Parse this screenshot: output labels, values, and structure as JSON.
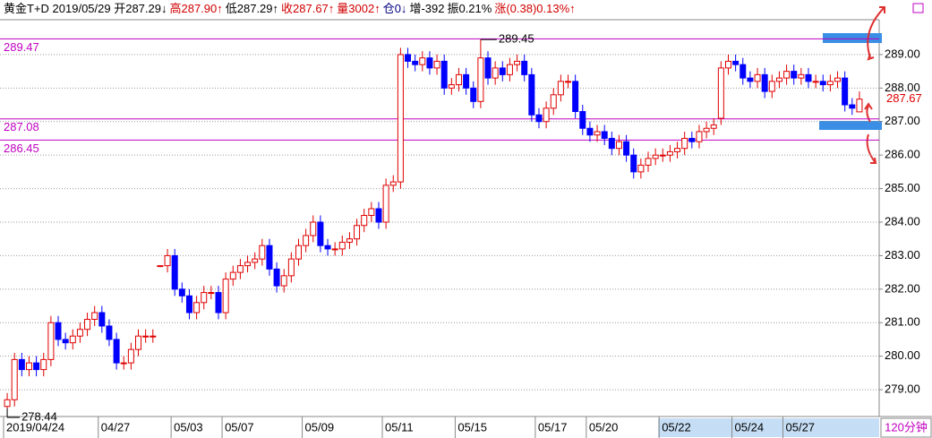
{
  "chart_data": {
    "type": "candlestick",
    "header": [
      {
        "text": "黄金T+D 2019/05/29 开287.29↓",
        "color": "#000000"
      },
      {
        "text": "高287.90↑",
        "color": "#d00000"
      },
      {
        "text": "低287.29↑",
        "color": "#000000"
      },
      {
        "text": "收287.67↑",
        "color": "#d00000"
      },
      {
        "text": "量3002↑",
        "color": "#d00000"
      },
      {
        "text": "仓0↓",
        "color": "#000080"
      },
      {
        "text": "增-392",
        "color": "#000000"
      },
      {
        "text": "振0.21%",
        "color": "#000000"
      },
      {
        "text": "涨(0.38)0.13%↑",
        "color": "#d00000"
      }
    ],
    "period": "120分钟",
    "up_color": "#e00000",
    "down_color": "#0000ff",
    "line_color": "#c000c0",
    "hlines": [
      289.47,
      287.08,
      286.45
    ],
    "ylim": [
      278.2,
      290.04
    ],
    "yticks": [
      {
        "value": 279,
        "label": "279.00"
      },
      {
        "value": 280,
        "label": "280.00"
      },
      {
        "value": 281,
        "label": "281.00"
      },
      {
        "value": 282,
        "label": "282.00"
      },
      {
        "value": 283,
        "label": "283.00"
      },
      {
        "value": 284,
        "label": "284.00"
      },
      {
        "value": 285,
        "label": "285.00"
      },
      {
        "value": 286,
        "label": "286.00"
      },
      {
        "value": 287,
        "label": "287.00"
      },
      {
        "value": 288,
        "label": "288.00"
      },
      {
        "value": 289,
        "label": "289.00"
      }
    ],
    "grid": true,
    "categories": [
      "2019/04/24",
      null,
      null,
      null,
      null,
      null,
      null,
      null,
      null,
      null,
      null,
      null,
      null,
      "04/27",
      null,
      null,
      null,
      null,
      null,
      null,
      null,
      null,
      null,
      "05/03",
      null,
      null,
      null,
      null,
      null,
      null,
      "05/07",
      null,
      null,
      null,
      null,
      null,
      null,
      null,
      null,
      null,
      null,
      "05/09",
      null,
      null,
      null,
      null,
      null,
      null,
      null,
      null,
      null,
      null,
      "05/11",
      null,
      null,
      null,
      null,
      null,
      null,
      null,
      null,
      null,
      "05/15",
      null,
      null,
      null,
      null,
      null,
      null,
      null,
      null,
      null,
      null,
      "05/17",
      null,
      null,
      null,
      null,
      null,
      null,
      "05/20",
      null,
      null,
      null,
      null,
      null,
      null,
      null,
      null,
      null,
      "05/22",
      null,
      null,
      null,
      null,
      null,
      null,
      null,
      null,
      null,
      "05/24",
      null,
      null,
      null,
      null,
      null,
      null,
      "05/27",
      null,
      null,
      null,
      null,
      null,
      null,
      null,
      null,
      null,
      null
    ],
    "open": [
      278.5,
      278.7,
      279.9,
      279.6,
      279.8,
      279.6,
      279.9,
      281.0,
      280.5,
      280.4,
      280.6,
      280.8,
      281.1,
      281.3,
      280.9,
      280.5,
      279.8,
      279.8,
      280.2,
      280.6,
      280.6,
      282.7,
      282.7,
      283.0,
      282.0,
      281.8,
      281.3,
      281.6,
      281.9,
      281.9,
      281.3,
      282.3,
      282.5,
      282.7,
      282.8,
      282.9,
      283.3,
      282.6,
      282.1,
      282.4,
      282.9,
      283.3,
      283.6,
      284.0,
      283.3,
      283.2,
      283.2,
      283.4,
      283.5,
      283.9,
      284.2,
      284.4,
      284.0,
      285.1,
      285.2,
      289.0,
      288.8,
      288.7,
      288.9,
      288.6,
      288.8,
      288.0,
      288.1,
      288.4,
      288.0,
      287.6,
      288.9,
      288.3,
      288.6,
      288.4,
      288.7,
      288.8,
      288.4,
      287.2,
      287.0,
      287.4,
      287.8,
      288.2,
      288.2,
      287.3,
      286.8,
      286.6,
      286.7,
      286.5,
      286.2,
      286.4,
      286.0,
      285.5,
      285.7,
      285.9,
      286.0,
      286.0,
      286.1,
      286.2,
      286.5,
      286.4,
      286.7,
      286.8,
      287.1,
      288.6,
      288.8,
      288.7,
      288.3,
      288.2,
      288.4,
      287.9,
      288.2,
      288.3,
      288.5,
      288.3,
      288.4,
      288.2,
      288.2,
      288.1,
      288.2,
      288.3,
      287.5,
      287.29
    ],
    "high": [
      278.9,
      280.1,
      280.1,
      280.0,
      280.0,
      280.1,
      281.2,
      281.2,
      280.7,
      280.8,
      281.0,
      281.3,
      281.5,
      281.5,
      281.1,
      280.7,
      280.0,
      280.4,
      280.8,
      280.8,
      280.8,
      282.7,
      283.2,
      283.2,
      282.2,
      282.0,
      281.8,
      282.1,
      282.1,
      282.1,
      282.5,
      282.7,
      282.9,
      283.0,
      283.1,
      283.5,
      283.5,
      282.8,
      282.6,
      283.1,
      283.5,
      283.8,
      284.2,
      284.2,
      283.5,
      283.4,
      283.6,
      283.7,
      284.1,
      284.4,
      284.6,
      284.6,
      285.3,
      285.4,
      289.2,
      289.2,
      289.0,
      289.1,
      289.1,
      289.0,
      289.0,
      288.3,
      288.6,
      288.6,
      288.2,
      289.45,
      289.1,
      288.8,
      288.8,
      288.9,
      289.0,
      289.0,
      288.6,
      287.4,
      287.6,
      288.0,
      288.4,
      288.4,
      288.4,
      287.5,
      287.0,
      286.9,
      286.9,
      286.7,
      286.6,
      286.6,
      286.2,
      285.9,
      286.1,
      286.2,
      286.2,
      286.3,
      286.4,
      286.7,
      286.7,
      286.9,
      287.0,
      287.1,
      288.8,
      289.0,
      289.0,
      288.9,
      288.5,
      288.6,
      288.6,
      288.4,
      288.5,
      288.7,
      288.7,
      288.6,
      288.6,
      288.4,
      288.4,
      288.4,
      288.5,
      288.5,
      287.7,
      287.9
    ],
    "low": [
      278.44,
      278.5,
      279.4,
      279.4,
      279.4,
      279.4,
      279.7,
      280.3,
      280.2,
      280.2,
      280.4,
      280.6,
      280.9,
      280.7,
      280.3,
      279.6,
      279.6,
      279.6,
      280.0,
      280.4,
      280.4,
      282.7,
      282.5,
      281.8,
      281.6,
      281.1,
      281.1,
      281.4,
      281.7,
      281.1,
      281.1,
      282.1,
      282.3,
      282.5,
      282.6,
      282.7,
      282.4,
      281.9,
      281.9,
      282.2,
      282.7,
      283.1,
      283.4,
      283.1,
      283.0,
      283.0,
      283.0,
      283.2,
      283.3,
      283.7,
      284.0,
      283.8,
      283.8,
      284.9,
      285.0,
      288.6,
      288.5,
      288.5,
      288.4,
      288.4,
      287.8,
      287.8,
      287.9,
      287.8,
      287.4,
      287.4,
      288.1,
      288.1,
      288.2,
      288.2,
      288.5,
      288.2,
      287.0,
      286.8,
      286.8,
      287.2,
      287.6,
      288.0,
      287.1,
      286.6,
      286.4,
      286.4,
      286.3,
      286.0,
      286.0,
      285.8,
      285.3,
      285.3,
      285.5,
      285.7,
      285.8,
      285.8,
      285.9,
      286.0,
      286.2,
      286.2,
      286.5,
      286.6,
      286.9,
      288.4,
      288.5,
      288.1,
      288.0,
      288.0,
      287.7,
      287.7,
      288.0,
      288.1,
      288.1,
      288.1,
      288.0,
      288.0,
      287.9,
      287.9,
      288.0,
      287.3,
      287.2,
      287.29
    ],
    "close": [
      278.7,
      279.9,
      279.6,
      279.8,
      279.6,
      279.9,
      281.0,
      280.5,
      280.4,
      280.6,
      280.8,
      281.1,
      281.3,
      280.9,
      280.5,
      279.8,
      279.8,
      280.2,
      280.6,
      280.6,
      280.6,
      282.7,
      283.0,
      282.0,
      281.8,
      281.3,
      281.6,
      281.9,
      281.9,
      281.3,
      282.3,
      282.5,
      282.7,
      282.8,
      282.9,
      283.3,
      282.6,
      282.1,
      282.4,
      282.9,
      283.3,
      283.6,
      284.0,
      283.3,
      283.2,
      283.2,
      283.4,
      283.5,
      283.9,
      284.2,
      284.4,
      284.0,
      285.1,
      285.2,
      289.0,
      288.8,
      288.7,
      288.9,
      288.6,
      288.8,
      288.0,
      288.1,
      288.4,
      288.0,
      287.6,
      288.9,
      288.3,
      288.6,
      288.4,
      288.7,
      288.8,
      288.4,
      287.2,
      287.0,
      287.4,
      287.8,
      288.2,
      288.2,
      287.3,
      286.8,
      286.6,
      286.7,
      286.5,
      286.2,
      286.4,
      286.0,
      285.5,
      285.7,
      285.9,
      286.0,
      286.0,
      286.1,
      286.2,
      286.5,
      286.4,
      286.7,
      286.8,
      286.9,
      288.6,
      288.8,
      288.7,
      288.3,
      288.2,
      288.4,
      287.9,
      288.2,
      288.3,
      288.5,
      288.3,
      288.4,
      288.2,
      288.2,
      288.1,
      288.2,
      288.3,
      287.5,
      287.4,
      287.67
    ]
  }
}
